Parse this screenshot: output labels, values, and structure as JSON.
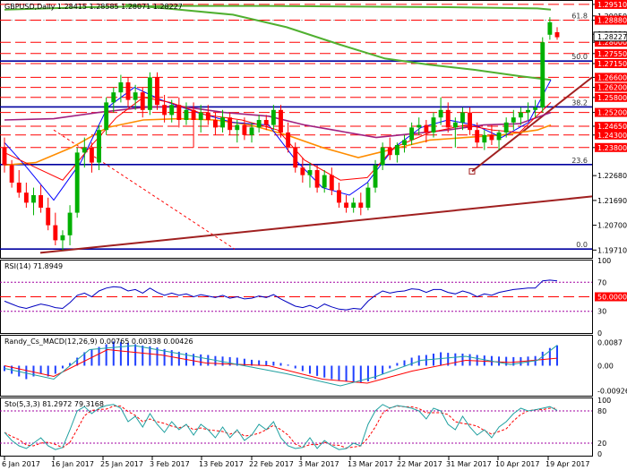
{
  "main": {
    "symbol_info": "GBPUSD,Daily  1.28415 1.28585 1.28071 1.28227",
    "price_range": [
      1.194,
      1.2965
    ],
    "price_ticks": [
      "1.29510",
      "1.29050",
      "1.28880",
      "1.28320",
      "1.28000",
      "1.27550",
      "1.27150",
      "1.26600",
      "1.26200",
      "1.25800",
      "1.25200",
      "1.24650",
      "1.24300",
      "1.23800",
      "1.22680",
      "1.21690",
      "1.20700",
      "1.19710"
    ],
    "highlighted_price_ticks": [
      "1.29510",
      "1.28880",
      "1.28000",
      "1.27550",
      "1.27150",
      "1.26600",
      "1.26200",
      "1.25800",
      "1.25200",
      "1.24650",
      "1.24300",
      "1.23800"
    ],
    "current_price": "1.28227",
    "fib_labels": [
      "61.8",
      "50.0",
      "38.2",
      "23.6",
      "0.0"
    ],
    "resistance_levels": [
      1.2951,
      1.2888,
      1.28,
      1.2755,
      1.2715,
      1.266,
      1.262,
      1.258,
      1.252,
      1.2465,
      1.243,
      1.238
    ],
    "blue_levels": [
      1.2725,
      1.2542,
      1.2312,
      1.1975
    ]
  },
  "rsi": {
    "label": "RSI(14) 71.8949",
    "ticks": [
      "100",
      "70",
      "50.0000",
      "30",
      "0"
    ],
    "highlighted_tick": "50.0000"
  },
  "macd": {
    "label": "Randy_Cs_MACD(12,26,9) 0.00765 0.00338 0.00426",
    "ticks": [
      "0.0087",
      "0.00",
      "-0.00926"
    ]
  },
  "sto": {
    "label": "Sto(5,3,3) 81.2972 79.3168",
    "ticks": [
      "100",
      "80",
      "20",
      "0"
    ]
  },
  "dates": [
    "6 Jan 2017",
    "16 Jan 2017",
    "25 Jan 2017",
    "3 Feb 2017",
    "13 Feb 2017",
    "22 Feb 2017",
    "3 Mar 2017",
    "13 Mar 2017",
    "22 Mar 2017",
    "31 Mar 2017",
    "10 Apr 2017",
    "19 Apr 2017"
  ],
  "colors": {
    "up_candle": "#00b000",
    "down_candle": "#ff0000",
    "red_level": "#ff0000",
    "blue_level": "#0000a0",
    "ma_green": "#50b030",
    "ma_purple": "#a02080",
    "ma_orange": "#ff8c00",
    "ma_blue": "#0000ff",
    "ma_red": "#ff0000",
    "trend_brown": "#a02020",
    "price_box": "#ff0000",
    "axis_bg": "#ffffff"
  },
  "chart_data": {
    "type": "candlestick",
    "title": "GBPUSD,Daily",
    "ohlc": [
      [
        1.238,
        1.242,
        1.228,
        1.231
      ],
      [
        1.231,
        1.233,
        1.222,
        1.224
      ],
      [
        1.224,
        1.229,
        1.218,
        1.22
      ],
      [
        1.22,
        1.224,
        1.214,
        1.216
      ],
      [
        1.216,
        1.222,
        1.211,
        1.219
      ],
      [
        1.219,
        1.223,
        1.212,
        1.214
      ],
      [
        1.214,
        1.218,
        1.205,
        1.207
      ],
      [
        1.207,
        1.212,
        1.199,
        1.201
      ],
      [
        1.201,
        1.205,
        1.197,
        1.203
      ],
      [
        1.203,
        1.215,
        1.199,
        1.212
      ],
      [
        1.212,
        1.238,
        1.21,
        1.236
      ],
      [
        1.236,
        1.242,
        1.23,
        1.238
      ],
      [
        1.238,
        1.24,
        1.228,
        1.232
      ],
      [
        1.232,
        1.247,
        1.229,
        1.245
      ],
      [
        1.245,
        1.258,
        1.243,
        1.256
      ],
      [
        1.256,
        1.262,
        1.252,
        1.26
      ],
      [
        1.26,
        1.267,
        1.256,
        1.264
      ],
      [
        1.264,
        1.266,
        1.254,
        1.257
      ],
      [
        1.257,
        1.263,
        1.253,
        1.26
      ],
      [
        1.26,
        1.262,
        1.25,
        1.253
      ],
      [
        1.253,
        1.268,
        1.251,
        1.266
      ],
      [
        1.266,
        1.268,
        1.253,
        1.255
      ],
      [
        1.255,
        1.259,
        1.248,
        1.251
      ],
      [
        1.251,
        1.257,
        1.248,
        1.255
      ],
      [
        1.255,
        1.258,
        1.246,
        1.249
      ],
      [
        1.249,
        1.256,
        1.247,
        1.253
      ],
      [
        1.253,
        1.256,
        1.238,
        1.249
      ],
      [
        1.249,
        1.255,
        1.244,
        1.252
      ],
      [
        1.252,
        1.255,
        1.247,
        1.249
      ],
      [
        1.249,
        1.252,
        1.243,
        1.246
      ],
      [
        1.246,
        1.253,
        1.244,
        1.25
      ],
      [
        1.25,
        1.252,
        1.243,
        1.245
      ],
      [
        1.245,
        1.249,
        1.24,
        1.247
      ],
      [
        1.247,
        1.25,
        1.241,
        1.243
      ],
      [
        1.243,
        1.248,
        1.24,
        1.246
      ],
      [
        1.246,
        1.251,
        1.244,
        1.249
      ],
      [
        1.249,
        1.251,
        1.245,
        1.247
      ],
      [
        1.247,
        1.255,
        1.245,
        1.253
      ],
      [
        1.253,
        1.255,
        1.242,
        1.244
      ],
      [
        1.244,
        1.248,
        1.236,
        1.238
      ],
      [
        1.238,
        1.24,
        1.228,
        1.23
      ],
      [
        1.23,
        1.234,
        1.224,
        1.227
      ],
      [
        1.227,
        1.232,
        1.222,
        1.229
      ],
      [
        1.229,
        1.231,
        1.22,
        1.222
      ],
      [
        1.222,
        1.229,
        1.22,
        1.227
      ],
      [
        1.227,
        1.23,
        1.219,
        1.221
      ],
      [
        1.221,
        1.224,
        1.214,
        1.216
      ],
      [
        1.216,
        1.219,
        1.212,
        1.214
      ],
      [
        1.214,
        1.218,
        1.212,
        1.216
      ],
      [
        1.216,
        1.22,
        1.211,
        1.214
      ],
      [
        1.214,
        1.224,
        1.213,
        1.222
      ],
      [
        1.222,
        1.233,
        1.22,
        1.231
      ],
      [
        1.231,
        1.24,
        1.229,
        1.238
      ],
      [
        1.238,
        1.242,
        1.233,
        1.235
      ],
      [
        1.235,
        1.24,
        1.232,
        1.239
      ],
      [
        1.239,
        1.243,
        1.236,
        1.241
      ],
      [
        1.241,
        1.248,
        1.239,
        1.246
      ],
      [
        1.246,
        1.25,
        1.243,
        1.247
      ],
      [
        1.247,
        1.249,
        1.24,
        1.244
      ],
      [
        1.244,
        1.252,
        1.242,
        1.25
      ],
      [
        1.25,
        1.258,
        1.247,
        1.253
      ],
      [
        1.253,
        1.256,
        1.244,
        1.246
      ],
      [
        1.246,
        1.25,
        1.238,
        1.248
      ],
      [
        1.248,
        1.254,
        1.245,
        1.252
      ],
      [
        1.252,
        1.254,
        1.243,
        1.245
      ],
      [
        1.245,
        1.248,
        1.238,
        1.24
      ],
      [
        1.24,
        1.245,
        1.237,
        1.243
      ],
      [
        1.243,
        1.247,
        1.239,
        1.241
      ],
      [
        1.241,
        1.245,
        1.237,
        1.244
      ],
      [
        1.244,
        1.25,
        1.242,
        1.248
      ],
      [
        1.248,
        1.253,
        1.245,
        1.25
      ],
      [
        1.25,
        1.254,
        1.247,
        1.252
      ],
      [
        1.252,
        1.256,
        1.249,
        1.253
      ],
      [
        1.253,
        1.257,
        1.25,
        1.254
      ],
      [
        1.254,
        1.282,
        1.252,
        1.28
      ],
      [
        1.283,
        1.29,
        1.281,
        1.288
      ],
      [
        1.284,
        1.286,
        1.281,
        1.282
      ]
    ],
    "series": [
      {
        "name": "RSI(14)",
        "last": 71.8949
      },
      {
        "name": "Randy_Cs_MACD(12,26,9)",
        "values_last": [
          0.00765,
          0.00338,
          0.00426
        ]
      },
      {
        "name": "Sto(5,3,3)",
        "values_last": [
          81.2972,
          79.3168
        ]
      }
    ]
  }
}
